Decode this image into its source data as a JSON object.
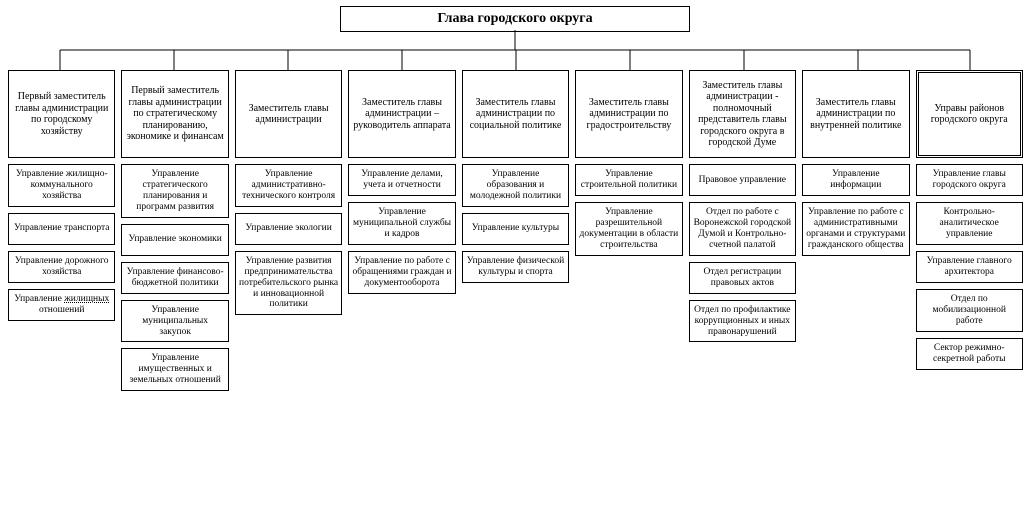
{
  "type": "tree",
  "background_color": "#ffffff",
  "line_color": "#000000",
  "font_family": "Times New Roman",
  "root": {
    "label": "Глава городского округа",
    "fontsize": 14,
    "fontweight": "bold"
  },
  "columns": [
    {
      "head": {
        "label": "Первый заместитель главы администрации по городскому хозяйству"
      },
      "children": [
        {
          "label": "Управление жилищно-коммунального хозяйства"
        },
        {
          "label": "Управление транспорта"
        },
        {
          "label": "Управление дорожного хозяйства"
        },
        {
          "label": "Управление жилищных отношений",
          "dotted": true
        }
      ]
    },
    {
      "head": {
        "label": "Первый заместитель главы администрации по стратегическому планированию, экономике и финансам"
      },
      "children": [
        {
          "label": "Управление стратегического планирования и программ развития"
        },
        {
          "label": "Управление экономики"
        },
        {
          "label": "Управление финансово-бюджетной политики"
        },
        {
          "label": "Управление муниципальных закупок"
        },
        {
          "label": "Управление имущественных и земельных отношений"
        }
      ]
    },
    {
      "head": {
        "label": "Заместитель главы администрации"
      },
      "children": [
        {
          "label": "Управление административно-технического контроля"
        },
        {
          "label": "Управление экологии"
        },
        {
          "label": "Управление развития предпринимательства потребительского рынка и инновационной политики"
        }
      ]
    },
    {
      "head": {
        "label": "Заместитель главы администрации – руководитель аппарата"
      },
      "children": [
        {
          "label": "Управление делами, учета и отчетности"
        },
        {
          "label": "Управление муниципальной службы и кадров"
        },
        {
          "label": "Управление по работе с обращениями граждан и документооборота"
        }
      ]
    },
    {
      "head": {
        "label": "Заместитель главы администрации по социальной политике"
      },
      "children": [
        {
          "label": "Управление образования и молодежной политики"
        },
        {
          "label": "Управление культуры"
        },
        {
          "label": "Управление физической культуры и спорта"
        }
      ]
    },
    {
      "head": {
        "label": "Заместитель главы администрации по градостроительству"
      },
      "children": [
        {
          "label": "Управление строительной политики"
        },
        {
          "label": "Управление разрешительной документации в области строительства"
        }
      ]
    },
    {
      "head": {
        "label": "Заместитель главы администрации - полномочный представитель главы городского округа в городской Думе"
      },
      "children": [
        {
          "label": "Правовое управление"
        },
        {
          "label": "Отдел по работе с Воронежской городской Думой и Контрольно-счетной палатой"
        },
        {
          "label": "Отдел регистрации правовых актов"
        },
        {
          "label": "Отдел по профилактике коррупционных и иных правонарушений"
        }
      ]
    },
    {
      "head": {
        "label": "Заместитель главы администрации по внутренней политике"
      },
      "children": [
        {
          "label": "Управление информации"
        },
        {
          "label": "Управление по работе с административными органами и структурами гражданского общества"
        }
      ]
    },
    {
      "head": {
        "label": "Управы районов городского округа",
        "double": true
      },
      "children": [
        {
          "label": "Управление главы городского округа"
        },
        {
          "label": "Контрольно-аналитическое управление"
        },
        {
          "label": "Управление главного архитектора"
        },
        {
          "label": "Отдел по мобилизационной работе"
        },
        {
          "label": "Сектор режимно-секретной работы"
        }
      ]
    }
  ],
  "node_style": {
    "border_color": "#000000",
    "border_width": 1,
    "background": "#ffffff",
    "fontsize": 10,
    "head_fontsize": 10,
    "head_min_height": 88
  }
}
